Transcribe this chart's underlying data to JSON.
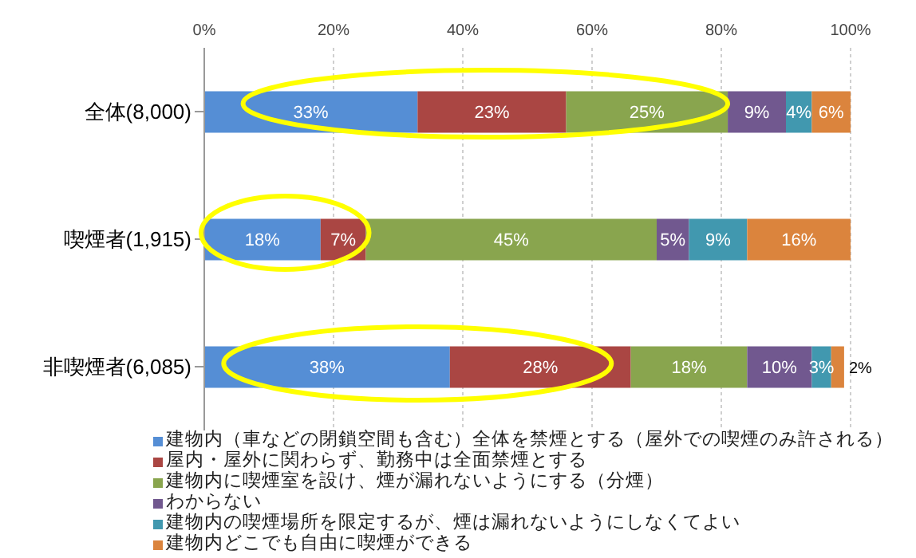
{
  "chart_data": {
    "type": "bar",
    "orientation": "horizontal",
    "stacked": true,
    "categories": [
      "全体(8,000)",
      "喫煙者(1,915)",
      "非喫煙者(6,085)"
    ],
    "series": [
      {
        "name": "建物内（車などの閉鎖空間も含む）全体を禁煙とする（屋外での喫煙のみ許される）",
        "color": "#558ed5",
        "values": [
          33,
          18,
          38
        ],
        "value_labels": [
          "33%",
          "18%",
          "38%"
        ]
      },
      {
        "name": "屋内・屋外に関わらず、勤務中は全面禁煙とする",
        "color": "#aa4643",
        "values": [
          23,
          7,
          28
        ],
        "value_labels": [
          "23%",
          "7%",
          "28%"
        ]
      },
      {
        "name": "建物内に喫煙室を設け、煙が漏れないようにする（分煙）",
        "color": "#89a54e",
        "values": [
          25,
          45,
          18
        ],
        "value_labels": [
          "25%",
          "45%",
          "18%"
        ]
      },
      {
        "name": "わからない",
        "color": "#71588f",
        "values": [
          9,
          5,
          10
        ],
        "value_labels": [
          "9%",
          "5%",
          "10%"
        ]
      },
      {
        "name": "建物内の喫煙場所を限定するが、煙は漏れないようにしなくてよい",
        "color": "#4198af",
        "values": [
          4,
          9,
          3
        ],
        "value_labels": [
          "4%",
          "9%",
          "3%"
        ]
      },
      {
        "name": "建物内どこでも自由に喫煙ができる",
        "color": "#db843d",
        "values": [
          6,
          16,
          2
        ],
        "value_labels": [
          "6%",
          "16%",
          "2%"
        ]
      }
    ],
    "xlim": [
      0,
      100
    ],
    "xticks": [
      {
        "value": 0,
        "label": "0%"
      },
      {
        "value": 20,
        "label": "20%"
      },
      {
        "value": 40,
        "label": "40%"
      },
      {
        "value": 60,
        "label": "60%"
      },
      {
        "value": 80,
        "label": "80%"
      },
      {
        "value": 100,
        "label": "100%"
      }
    ],
    "grid": "x",
    "legend": "bottom"
  }
}
